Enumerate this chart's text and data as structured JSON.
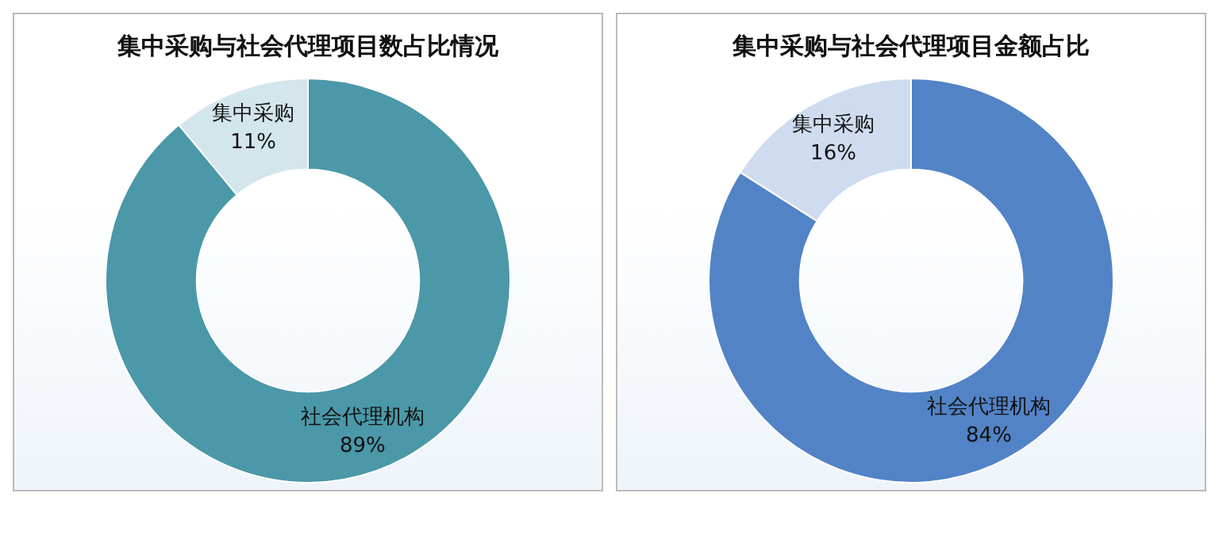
{
  "chart_data": [
    {
      "type": "donut",
      "title": "集中采购与社会代理项目数占比情况",
      "categories": [
        "社会代理机构",
        "集中采购"
      ],
      "values": [
        89,
        11
      ],
      "colors": [
        "#4a98a8",
        "#d3e6ec"
      ],
      "value_labels": [
        "89%",
        "11%"
      ],
      "legend": false
    },
    {
      "type": "donut",
      "title": "集中采购与社会代理项目金额占比",
      "categories": [
        "社会代理机构",
        "集中采购"
      ],
      "values": [
        84,
        16
      ],
      "colors": [
        "#5283c6",
        "#cfdcf0"
      ],
      "value_labels": [
        "84%",
        "16%"
      ],
      "legend": false
    }
  ]
}
